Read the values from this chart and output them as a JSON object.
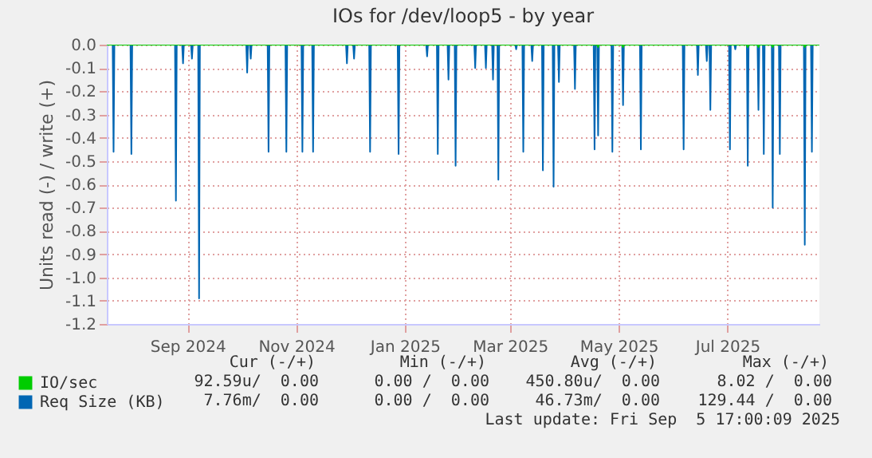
{
  "chart_data": {
    "type": "line",
    "title": "IOs for /dev/loop5 - by year",
    "ylabel": "Units read (-) / write (+)",
    "xlim": [
      "2024-08-01T17:00",
      "2025-09-05T17:00"
    ],
    "xticks": [
      {
        "value": "2024-09-16",
        "label": "Sep 2024"
      },
      {
        "value": "2024-11-16",
        "label": "Nov 2024"
      },
      {
        "value": "2025-01-16",
        "label": "Jan 2025"
      },
      {
        "value": "2025-03-16",
        "label": "Mar 2025"
      },
      {
        "value": "2025-05-16",
        "label": "May 2025"
      },
      {
        "value": "2025-07-16",
        "label": "Jul 2025"
      }
    ],
    "ylim": [
      -1.2,
      0
    ],
    "yticks": [
      {
        "value": 0,
        "label": "0.0"
      },
      -0.1,
      -0.2,
      -0.3,
      -0.4,
      -0.5,
      -0.6,
      -0.7,
      -0.8,
      -0.9,
      {
        "value": -1,
        "label": "-1.0"
      },
      -1.1,
      -1.2
    ],
    "grid": true,
    "legend": "bottom left",
    "series": [
      {
        "name": "IO/sec",
        "color": "#00cc00",
        "x": [
          "2024-08-01T17:00",
          "2025-05-04T00:00",
          "2025-05-04T12:00",
          "2025-05-04T23:00",
          "2025-05-18T00:00",
          "2025-05-18T12:00",
          "2025-05-18T23:00",
          "2025-07-27T00:00",
          "2025-07-27T12:00",
          "2025-07-27T23:00",
          "2025-08-02T00:00",
          "2025-08-02T12:00",
          "2025-08-02T23:00",
          "2025-08-10T00:00",
          "2025-08-10T12:00",
          "2025-08-10T23:00",
          "2025-08-28T00:00",
          "2025-08-28T12:00",
          "2025-08-28T23:00",
          "2025-09-05T17:00"
        ],
        "values": [
          0,
          0,
          -0.01,
          0,
          0,
          -0.01,
          0,
          0,
          -0.01,
          0,
          0,
          -0.01,
          0,
          0,
          -0.01,
          0,
          0,
          -0.01,
          0,
          0
        ]
      },
      {
        "name": "Req Size (KB)",
        "color": "#0066b3",
        "x": [
          "2024-08-01T17:00",
          "2024-08-05T00:00",
          "2024-08-05T12:00",
          "2024-08-05T23:00",
          "2024-08-15T00:00",
          "2024-08-15T12:00",
          "2024-08-15T23:00",
          "2024-09-09T00:00",
          "2024-09-09T12:00",
          "2024-09-09T23:00",
          "2024-09-13T00:00",
          "2024-09-13T12:00",
          "2024-09-13T23:00",
          "2024-09-18T00:00",
          "2024-09-18T12:00",
          "2024-09-18T23:00",
          "2024-09-22T00:00",
          "2024-09-22T12:00",
          "2024-09-22T23:00",
          "2024-10-19T00:00",
          "2024-10-19T12:00",
          "2024-10-19T23:00",
          "2024-10-21T00:00",
          "2024-10-21T12:00",
          "2024-10-21T23:00",
          "2024-10-31T00:00",
          "2024-10-31T12:00",
          "2024-10-31T23:00",
          "2024-11-10T00:00",
          "2024-11-10T12:00",
          "2024-11-10T23:00",
          "2024-11-19T00:00",
          "2024-11-19T12:00",
          "2024-11-19T23:00",
          "2024-11-25T00:00",
          "2024-11-25T12:00",
          "2024-11-25T23:00",
          "2024-12-14T00:00",
          "2024-12-14T12:00",
          "2024-12-14T23:00",
          "2024-12-18T00:00",
          "2024-12-18T12:00",
          "2024-12-18T23:00",
          "2024-12-27T00:00",
          "2024-12-27T12:00",
          "2024-12-27T23:00",
          "2025-01-12T00:00",
          "2025-01-12T12:00",
          "2025-01-12T23:00",
          "2025-01-28T00:00",
          "2025-01-28T12:00",
          "2025-01-28T23:00",
          "2025-02-03T00:00",
          "2025-02-03T12:00",
          "2025-02-03T23:00",
          "2025-02-09T00:00",
          "2025-02-09T12:00",
          "2025-02-09T23:00",
          "2025-02-13T00:00",
          "2025-02-13T12:00",
          "2025-02-13T23:00",
          "2025-02-24T00:00",
          "2025-02-24T12:00",
          "2025-02-24T23:00",
          "2025-03-02T00:00",
          "2025-03-02T12:00",
          "2025-03-02T23:00",
          "2025-03-06T00:00",
          "2025-03-06T12:00",
          "2025-03-06T23:00",
          "2025-03-09T00:00",
          "2025-03-09T12:00",
          "2025-03-09T23:00",
          "2025-03-19T00:00",
          "2025-03-19T12:00",
          "2025-03-19T23:00",
          "2025-03-23T00:00",
          "2025-03-23T12:00",
          "2025-03-23T23:00",
          "2025-03-28T00:00",
          "2025-03-28T12:00",
          "2025-03-28T23:00",
          "2025-04-03T00:00",
          "2025-04-03T12:00",
          "2025-04-03T23:00",
          "2025-04-09T00:00",
          "2025-04-09T12:00",
          "2025-04-09T23:00",
          "2025-04-12T00:00",
          "2025-04-12T12:00",
          "2025-04-12T23:00",
          "2025-04-21T00:00",
          "2025-04-21T12:00",
          "2025-04-21T23:00",
          "2025-05-02T00:00",
          "2025-05-02T12:00",
          "2025-05-02T23:00",
          "2025-05-04T00:00",
          "2025-05-04T12:00",
          "2025-05-04T23:00",
          "2025-05-12T00:00",
          "2025-05-12T12:00",
          "2025-05-12T23:00",
          "2025-05-18T00:00",
          "2025-05-18T12:00",
          "2025-05-18T23:00",
          "2025-05-28T00:00",
          "2025-05-28T12:00",
          "2025-05-28T23:00",
          "2025-06-21T00:00",
          "2025-06-21T12:00",
          "2025-06-21T23:00",
          "2025-06-29T00:00",
          "2025-06-29T12:00",
          "2025-06-29T23:00",
          "2025-07-04T00:00",
          "2025-07-04T12:00",
          "2025-07-04T23:00",
          "2025-07-06T00:00",
          "2025-07-06T12:00",
          "2025-07-06T23:00",
          "2025-07-17T00:00",
          "2025-07-17T12:00",
          "2025-07-17T23:00",
          "2025-07-20T00:00",
          "2025-07-20T12:00",
          "2025-07-20T23:00",
          "2025-07-27T00:00",
          "2025-07-27T12:00",
          "2025-07-27T23:00",
          "2025-08-02T00:00",
          "2025-08-02T12:00",
          "2025-08-02T23:00",
          "2025-08-05T00:00",
          "2025-08-05T12:00",
          "2025-08-05T23:00",
          "2025-08-10T00:00",
          "2025-08-10T12:00",
          "2025-08-10T23:00",
          "2025-08-14T00:00",
          "2025-08-14T12:00",
          "2025-08-14T23:00",
          "2025-08-28T00:00",
          "2025-08-28T12:00",
          "2025-08-28T23:00",
          "2025-09-01T00:00",
          "2025-09-01T12:00",
          "2025-09-01T23:00",
          "2025-09-05T17:00"
        ],
        "values": [
          0,
          0,
          -0.46,
          0,
          0,
          -0.47,
          0,
          0,
          -0.67,
          0,
          0,
          -0.08,
          0,
          0,
          -0.06,
          0,
          0,
          -1.09,
          0,
          0,
          -0.12,
          0,
          0,
          -0.06,
          0,
          0,
          -0.46,
          0,
          0,
          -0.46,
          0,
          0,
          -0.46,
          0,
          0,
          -0.46,
          0,
          0,
          -0.08,
          0,
          0,
          -0.06,
          0,
          0,
          -0.46,
          0,
          0,
          -0.47,
          0,
          0,
          -0.05,
          0,
          0,
          -0.47,
          0,
          0,
          -0.15,
          0,
          0,
          -0.52,
          0,
          0,
          -0.1,
          0,
          0,
          -0.1,
          0,
          0,
          -0.15,
          0,
          0,
          -0.58,
          0,
          0,
          -0.02,
          0,
          0,
          -0.46,
          0,
          0,
          -0.07,
          0,
          0,
          -0.54,
          0,
          0,
          -0.61,
          0,
          0,
          -0.16,
          0,
          0,
          -0.19,
          0,
          0,
          -0.45,
          0,
          0,
          -0.39,
          0,
          0,
          -0.46,
          0,
          0,
          -0.26,
          0,
          0,
          -0.45,
          0,
          0,
          -0.45,
          0,
          0,
          -0.13,
          0,
          0,
          -0.07,
          0,
          0,
          -0.28,
          0,
          0,
          -0.45,
          0,
          0,
          -0.02,
          0,
          0,
          -0.52,
          0,
          0,
          -0.28,
          0,
          0,
          -0.47,
          0,
          0,
          -0.7,
          0,
          0,
          -0.47,
          0,
          0,
          -0.86,
          0,
          0,
          -0.46,
          0,
          0
        ]
      }
    ],
    "annotations": [
      "Cur (-/+)",
      "Min (-/+)",
      "Avg (-/+)",
      "Max (-/+)",
      "92.59u/  0.00",
      "0.00 /  0.00",
      "450.80u/  0.00",
      "8.02 /  0.00",
      "7.76m/  0.00",
      "0.00 /  0.00",
      "46.73m/  0.00",
      "129.44 /  0.00",
      "Last update: Fri Sep  5 17:00:09 2025"
    ]
  }
}
